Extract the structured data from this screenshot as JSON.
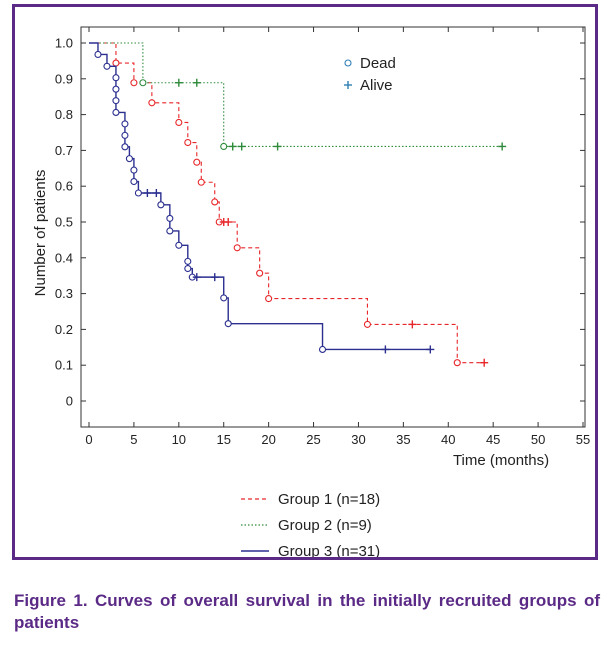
{
  "caption": "Figure 1. Curves of overall survival in the initially recruited groups of patients",
  "chart_data": {
    "type": "line",
    "xlabel": "Time (months)",
    "ylabel": "Number of patients",
    "xlim": [
      0,
      55
    ],
    "ylim": [
      0,
      1.0
    ],
    "x_ticks": [
      0,
      5,
      10,
      15,
      20,
      25,
      30,
      35,
      40,
      45,
      50,
      55
    ],
    "y_ticks": [
      0,
      0.1,
      0.2,
      0.3,
      0.4,
      0.5,
      0.6,
      0.7,
      0.8,
      0.9,
      1.0
    ],
    "x_tick_labels": [
      "0",
      "5",
      "10",
      "15",
      "20",
      "25",
      "30",
      "35",
      "40",
      "45",
      "50",
      "55"
    ],
    "y_tick_labels": [
      "0",
      "0.1",
      "0.2",
      "0.3",
      "0.4",
      "0.5",
      "0.6",
      "0.7",
      "0.8",
      "0.9",
      "1.0"
    ],
    "grid": false,
    "marker_legend": [
      {
        "label": "Dead",
        "marker": "circle"
      },
      {
        "label": "Alive",
        "marker": "plus"
      }
    ],
    "series": [
      {
        "name": "Group 1 (n=18)",
        "color": "#e8262a",
        "dash": "dashed",
        "steps": [
          [
            0,
            1.0
          ],
          [
            3,
            0.944
          ],
          [
            5,
            0.889
          ],
          [
            7,
            0.833
          ],
          [
            10,
            0.778
          ],
          [
            11,
            0.722
          ],
          [
            12,
            0.667
          ],
          [
            12.5,
            0.611
          ],
          [
            14,
            0.556
          ],
          [
            14.5,
            0.5
          ],
          [
            16.5,
            0.428
          ],
          [
            19,
            0.357
          ],
          [
            20,
            0.286
          ],
          [
            31,
            0.214
          ],
          [
            41,
            0.107
          ],
          [
            44,
            0.107
          ]
        ],
        "dead": [
          [
            3,
            0.944
          ],
          [
            5,
            0.889
          ],
          [
            7,
            0.833
          ],
          [
            10,
            0.778
          ],
          [
            11,
            0.722
          ],
          [
            12,
            0.667
          ],
          [
            12.5,
            0.611
          ],
          [
            14,
            0.556
          ],
          [
            14.5,
            0.5
          ],
          [
            16.5,
            0.428
          ],
          [
            19,
            0.357
          ],
          [
            20,
            0.286
          ],
          [
            31,
            0.214
          ],
          [
            41,
            0.107
          ]
        ],
        "alive": [
          [
            15,
            0.5
          ],
          [
            15.5,
            0.5
          ],
          [
            36,
            0.214
          ],
          [
            44,
            0.107
          ]
        ]
      },
      {
        "name": "Group 2 (n=9)",
        "color": "#2e8b3a",
        "dash": "dotted",
        "steps": [
          [
            0,
            1.0
          ],
          [
            6,
            0.889
          ],
          [
            15,
            0.711
          ],
          [
            46,
            0.711
          ]
        ],
        "dead": [
          [
            6,
            0.889
          ],
          [
            15,
            0.711
          ]
        ],
        "alive": [
          [
            10,
            0.889
          ],
          [
            12,
            0.889
          ],
          [
            16,
            0.711
          ],
          [
            17,
            0.711
          ],
          [
            21,
            0.711
          ],
          [
            46,
            0.711
          ]
        ]
      },
      {
        "name": "Group 3 (n=31)",
        "color": "#2b2f8f",
        "dash": "solid",
        "steps": [
          [
            0,
            1.0
          ],
          [
            1,
            0.968
          ],
          [
            2,
            0.935
          ],
          [
            3,
            0.903
          ],
          [
            3,
            0.871
          ],
          [
            3,
            0.839
          ],
          [
            3,
            0.806
          ],
          [
            4,
            0.774
          ],
          [
            4,
            0.742
          ],
          [
            4,
            0.71
          ],
          [
            4.5,
            0.677
          ],
          [
            5,
            0.645
          ],
          [
            5,
            0.613
          ],
          [
            5.5,
            0.581
          ],
          [
            8,
            0.548
          ],
          [
            9,
            0.51
          ],
          [
            9,
            0.475
          ],
          [
            10,
            0.435
          ],
          [
            11,
            0.39
          ],
          [
            11,
            0.37
          ],
          [
            11.5,
            0.346
          ],
          [
            15,
            0.288
          ],
          [
            15.5,
            0.216
          ],
          [
            26,
            0.144
          ],
          [
            38,
            0.144
          ]
        ],
        "dead": [
          [
            1,
            0.968
          ],
          [
            2,
            0.935
          ],
          [
            3,
            0.903
          ],
          [
            3,
            0.871
          ],
          [
            3,
            0.839
          ],
          [
            3,
            0.806
          ],
          [
            4,
            0.774
          ],
          [
            4,
            0.742
          ],
          [
            4,
            0.71
          ],
          [
            4.5,
            0.677
          ],
          [
            5,
            0.645
          ],
          [
            5,
            0.613
          ],
          [
            5.5,
            0.581
          ],
          [
            8,
            0.548
          ],
          [
            9,
            0.51
          ],
          [
            9,
            0.475
          ],
          [
            10,
            0.435
          ],
          [
            11,
            0.39
          ],
          [
            11,
            0.37
          ],
          [
            11.5,
            0.346
          ],
          [
            15,
            0.288
          ],
          [
            15.5,
            0.216
          ],
          [
            26,
            0.144
          ]
        ],
        "alive": [
          [
            6.5,
            0.581
          ],
          [
            7.5,
            0.581
          ],
          [
            12,
            0.346
          ],
          [
            14,
            0.346
          ],
          [
            33,
            0.144
          ],
          [
            38,
            0.144
          ]
        ]
      }
    ]
  }
}
